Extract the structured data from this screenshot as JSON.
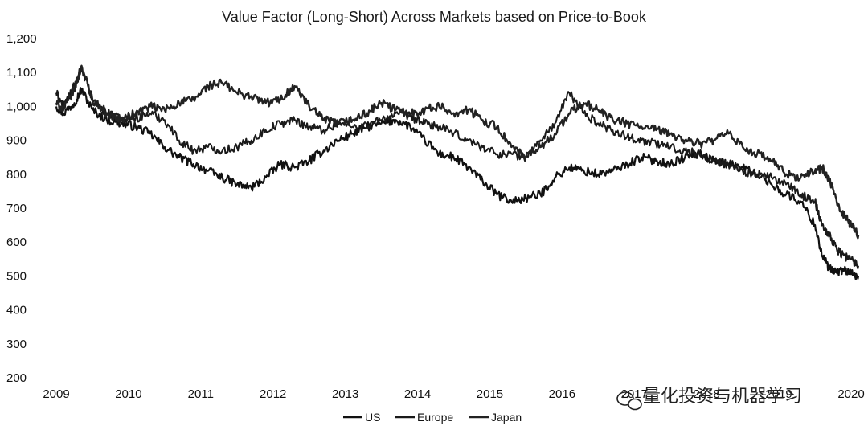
{
  "chart_data": {
    "type": "line",
    "title": "Value Factor (Long-Short) Across Markets based on Price-to-Book",
    "xlabel": "",
    "ylabel": "",
    "x_ticks": [
      "2009",
      "2010",
      "2011",
      "2012",
      "2013",
      "2014",
      "2015",
      "2016",
      "2017",
      "2018",
      "2019",
      "2020"
    ],
    "y_ticks": [
      "200",
      "300",
      "400",
      "500",
      "600",
      "700",
      "800",
      "900",
      "1,000",
      "1,100",
      "1,200"
    ],
    "ylim": [
      200,
      1200
    ],
    "xlim": [
      2009.0,
      2020.1
    ],
    "grid": false,
    "legend_position": "bottom-center",
    "colors": {
      "US": "#111111",
      "Europe": "#1a1a1a",
      "Japan": "#222222"
    },
    "series": [
      {
        "name": "US",
        "x": [
          2009.0,
          2009.1,
          2009.25,
          2009.35,
          2009.5,
          2009.7,
          2009.9,
          2010.1,
          2010.3,
          2010.5,
          2010.7,
          2010.9,
          2011.1,
          2011.3,
          2011.5,
          2011.7,
          2011.9,
          2012.1,
          2012.3,
          2012.5,
          2012.7,
          2012.9,
          2013.1,
          2013.3,
          2013.5,
          2013.7,
          2013.9,
          2014.1,
          2014.3,
          2014.5,
          2014.7,
          2014.9,
          2015.1,
          2015.3,
          2015.5,
          2015.7,
          2015.9,
          2016.1,
          2016.3,
          2016.5,
          2016.7,
          2016.9,
          2017.1,
          2017.3,
          2017.5,
          2017.7,
          2017.9,
          2018.1,
          2018.3,
          2018.5,
          2018.7,
          2018.9,
          2019.1,
          2019.3,
          2019.5,
          2019.6,
          2019.7,
          2019.8,
          2019.9,
          2020.0,
          2020.1
        ],
        "values": [
          1000,
          980,
          1010,
          1050,
          990,
          960,
          950,
          940,
          920,
          880,
          850,
          830,
          810,
          790,
          770,
          760,
          790,
          830,
          820,
          840,
          870,
          900,
          920,
          940,
          950,
          960,
          940,
          900,
          860,
          850,
          820,
          780,
          740,
          720,
          730,
          740,
          790,
          820,
          810,
          800,
          810,
          830,
          850,
          840,
          830,
          850,
          860,
          840,
          830,
          820,
          800,
          770,
          740,
          720,
          650,
          560,
          520,
          510,
          520,
          505,
          500
        ]
      },
      {
        "name": "Europe",
        "x": [
          2009.0,
          2009.1,
          2009.25,
          2009.35,
          2009.5,
          2009.7,
          2009.9,
          2010.1,
          2010.3,
          2010.5,
          2010.7,
          2010.9,
          2011.1,
          2011.3,
          2011.5,
          2011.7,
          2011.9,
          2012.1,
          2012.3,
          2012.5,
          2012.7,
          2012.9,
          2013.1,
          2013.3,
          2013.5,
          2013.7,
          2013.9,
          2014.1,
          2014.3,
          2014.5,
          2014.7,
          2014.9,
          2015.1,
          2015.3,
          2015.5,
          2015.7,
          2015.9,
          2016.1,
          2016.3,
          2016.5,
          2016.7,
          2016.9,
          2017.1,
          2017.3,
          2017.5,
          2017.7,
          2017.9,
          2018.1,
          2018.3,
          2018.5,
          2018.7,
          2018.9,
          2019.1,
          2019.3,
          2019.5,
          2019.6,
          2019.7,
          2019.8,
          2019.9,
          2020.0,
          2020.1
        ],
        "values": [
          1040,
          1000,
          1060,
          1110,
          1020,
          980,
          960,
          965,
          980,
          960,
          900,
          870,
          880,
          870,
          880,
          900,
          930,
          950,
          960,
          940,
          930,
          950,
          940,
          945,
          960,
          980,
          970,
          950,
          940,
          920,
          900,
          880,
          860,
          860,
          850,
          900,
          950,
          1040,
          980,
          950,
          930,
          910,
          900,
          890,
          880,
          870,
          860,
          840,
          830,
          810,
          800,
          790,
          770,
          740,
          720,
          650,
          620,
          580,
          560,
          550,
          530
        ]
      },
      {
        "name": "Japan",
        "x": [
          2009.0,
          2009.1,
          2009.25,
          2009.35,
          2009.5,
          2009.7,
          2009.9,
          2010.1,
          2010.3,
          2010.5,
          2010.7,
          2010.9,
          2011.1,
          2011.3,
          2011.5,
          2011.7,
          2011.9,
          2012.1,
          2012.3,
          2012.5,
          2012.7,
          2012.9,
          2013.1,
          2013.3,
          2013.5,
          2013.7,
          2013.9,
          2014.1,
          2014.3,
          2014.5,
          2014.7,
          2014.9,
          2015.1,
          2015.3,
          2015.5,
          2015.7,
          2015.9,
          2016.1,
          2016.3,
          2016.5,
          2016.7,
          2016.9,
          2017.1,
          2017.3,
          2017.5,
          2017.7,
          2017.9,
          2018.1,
          2018.3,
          2018.5,
          2018.7,
          2018.9,
          2019.1,
          2019.3,
          2019.5,
          2019.6,
          2019.7,
          2019.8,
          2019.9,
          2020.0,
          2020.1
        ],
        "values": [
          1010,
          990,
          1050,
          1120,
          1020,
          980,
          960,
          980,
          1000,
          990,
          1010,
          1020,
          1060,
          1070,
          1040,
          1030,
          1010,
          1020,
          1060,
          1000,
          960,
          950,
          960,
          980,
          1010,
          990,
          980,
          990,
          1000,
          980,
          990,
          960,
          940,
          880,
          850,
          880,
          920,
          980,
          1010,
          990,
          960,
          950,
          940,
          930,
          920,
          900,
          890,
          900,
          920,
          880,
          860,
          840,
          800,
          790,
          810,
          820,
          780,
          720,
          680,
          650,
          620
        ]
      }
    ]
  },
  "watermark": {
    "text": "量化投资与机器学习",
    "icon": "wechat-icon"
  }
}
